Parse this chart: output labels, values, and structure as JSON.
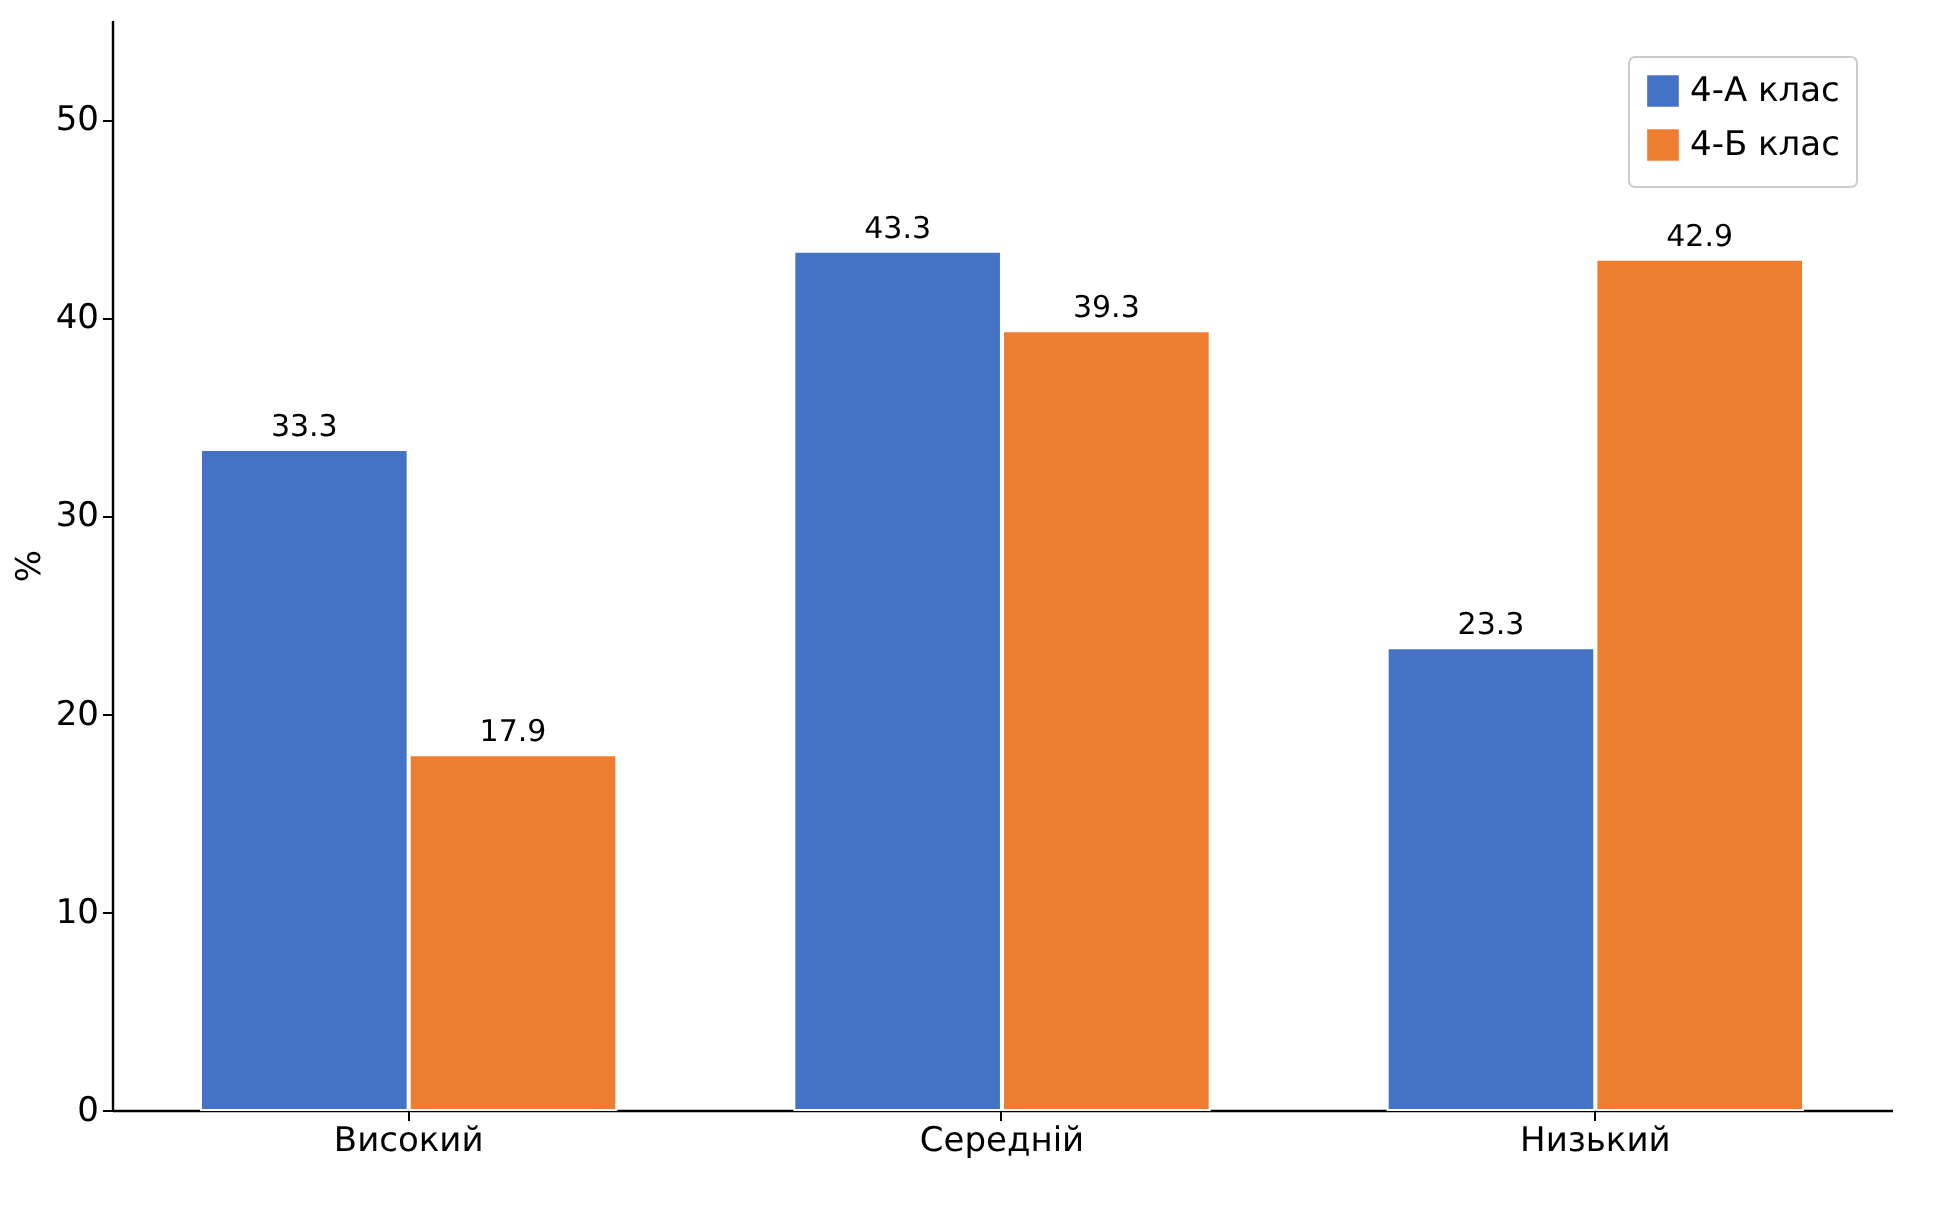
{
  "chart_data": {
    "type": "bar",
    "ylabel": "%",
    "categories": [
      "Високий",
      "Середній",
      "Низький"
    ],
    "series": [
      {
        "name": "4-А клас",
        "color": "#4472c4",
        "values": [
          33.3,
          43.3,
          23.3
        ]
      },
      {
        "name": "4-Б клас",
        "color": "#ed7d31",
        "values": [
          17.9,
          39.3,
          42.9
        ]
      }
    ],
    "ylim": [
      0,
      55
    ],
    "yticks": [
      0,
      10,
      20,
      30,
      40,
      50
    ],
    "grid": false,
    "legend": "top right",
    "data_labels": true
  }
}
